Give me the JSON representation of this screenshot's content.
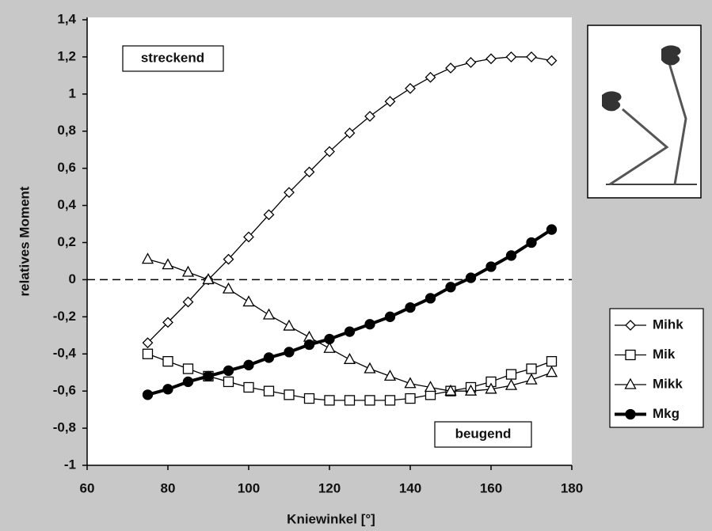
{
  "chart_data": {
    "type": "line",
    "x_label": "Kniewinkel [°]",
    "y_label": "relatives Moment",
    "annotations": [
      "streckend",
      "beugend"
    ],
    "x": [
      75,
      80,
      85,
      90,
      95,
      100,
      105,
      110,
      115,
      120,
      125,
      130,
      135,
      140,
      145,
      150,
      155,
      160,
      165,
      170,
      175
    ],
    "series": [
      {
        "name": "Mihk",
        "color": "#000000",
        "marker": "diamond",
        "filled": false,
        "width": 1.3,
        "values": [
          -0.34,
          -0.23,
          -0.12,
          0.0,
          0.11,
          0.23,
          0.35,
          0.47,
          0.58,
          0.69,
          0.79,
          0.88,
          0.96,
          1.03,
          1.09,
          1.14,
          1.17,
          1.19,
          1.2,
          1.2,
          1.18
        ]
      },
      {
        "name": "Mik",
        "color": "#000000",
        "marker": "square",
        "filled": false,
        "width": 1.3,
        "values": [
          -0.4,
          -0.44,
          -0.48,
          -0.52,
          -0.55,
          -0.58,
          -0.6,
          -0.62,
          -0.64,
          -0.65,
          -0.65,
          -0.65,
          -0.65,
          -0.64,
          -0.62,
          -0.6,
          -0.58,
          -0.55,
          -0.51,
          -0.48,
          -0.44
        ]
      },
      {
        "name": "Mikk",
        "color": "#000000",
        "marker": "triangle",
        "filled": false,
        "width": 1.3,
        "values": [
          0.11,
          0.08,
          0.04,
          0.0,
          -0.05,
          -0.12,
          -0.19,
          -0.25,
          -0.31,
          -0.37,
          -0.43,
          -0.48,
          -0.52,
          -0.56,
          -0.58,
          -0.6,
          -0.6,
          -0.59,
          -0.57,
          -0.54,
          -0.5
        ]
      },
      {
        "name": "Mkg",
        "color": "#000000",
        "marker": "circle",
        "filled": true,
        "width": 4,
        "values": [
          -0.62,
          -0.59,
          -0.55,
          -0.52,
          -0.49,
          -0.46,
          -0.42,
          -0.39,
          -0.35,
          -0.32,
          -0.28,
          -0.24,
          -0.2,
          -0.15,
          -0.1,
          -0.04,
          0.01,
          0.07,
          0.13,
          0.2,
          0.27
        ]
      }
    ],
    "xlim": [
      60,
      180
    ],
    "xticks": [
      60,
      80,
      100,
      120,
      140,
      160,
      180
    ],
    "ylim": [
      -1,
      1.4
    ],
    "yticks": [
      -1,
      {
        "value": -0.8,
        "label": "-0,8"
      },
      {
        "value": -0.6,
        "label": "-0,6"
      },
      {
        "value": -0.4,
        "label": "-0,4"
      },
      {
        "value": -0.2,
        "label": "-0,2"
      },
      0,
      {
        "value": 0.2,
        "label": "0,2"
      },
      {
        "value": 0.4,
        "label": "0,4"
      },
      {
        "value": 0.6,
        "label": "0,6"
      },
      {
        "value": 0.8,
        "label": "0,8"
      },
      1,
      {
        "value": 1.2,
        "label": "1,2"
      },
      {
        "value": 1.4,
        "label": "1,4"
      }
    ],
    "zero_line": true
  }
}
